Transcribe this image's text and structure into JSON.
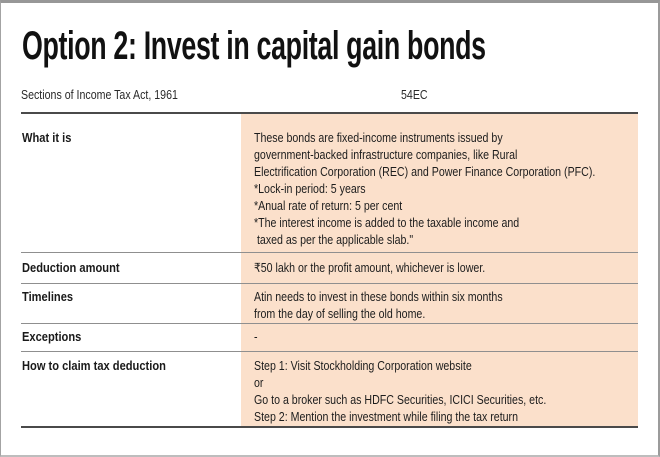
{
  "title": "Option 2: Invest in capital gain bonds",
  "header": {
    "label": "Sections of Income Tax Act, 1961",
    "value": "54EC"
  },
  "table": {
    "rows": [
      {
        "label": "What it is",
        "value": "These bonds are fixed-income instruments issued by\ngovernment-backed infrastructure companies, like Rural\nElectrification Corporation (REC) and Power Finance Corporation (PFC).\n*Lock-in period: 5 years\n*Anual rate of return: 5 per cent\n*The interest income is added to the taxable income and\n taxed as per the applicable slab.\""
      },
      {
        "label": "Deduction amount",
        "value": "₹50 lakh or the profit amount, whichever is lower."
      },
      {
        "label": "Timelines",
        "value": "Atin needs to invest in these bonds within six months\nfrom the day of selling the old home."
      },
      {
        "label": "Exceptions",
        "value": "-"
      },
      {
        "label": "How to claim tax deduction",
        "value": "Step 1: Visit Stockholding Corporation website\nor\nGo to a broker such as HDFC Securities, ICICI Securities, etc.\nStep 2: Mention the investment while filing the tax return"
      }
    ]
  },
  "colors": {
    "highlight": "#fbe0cb",
    "rule_dark": "#4a4a4a",
    "rule_light": "#8f8f8f"
  }
}
